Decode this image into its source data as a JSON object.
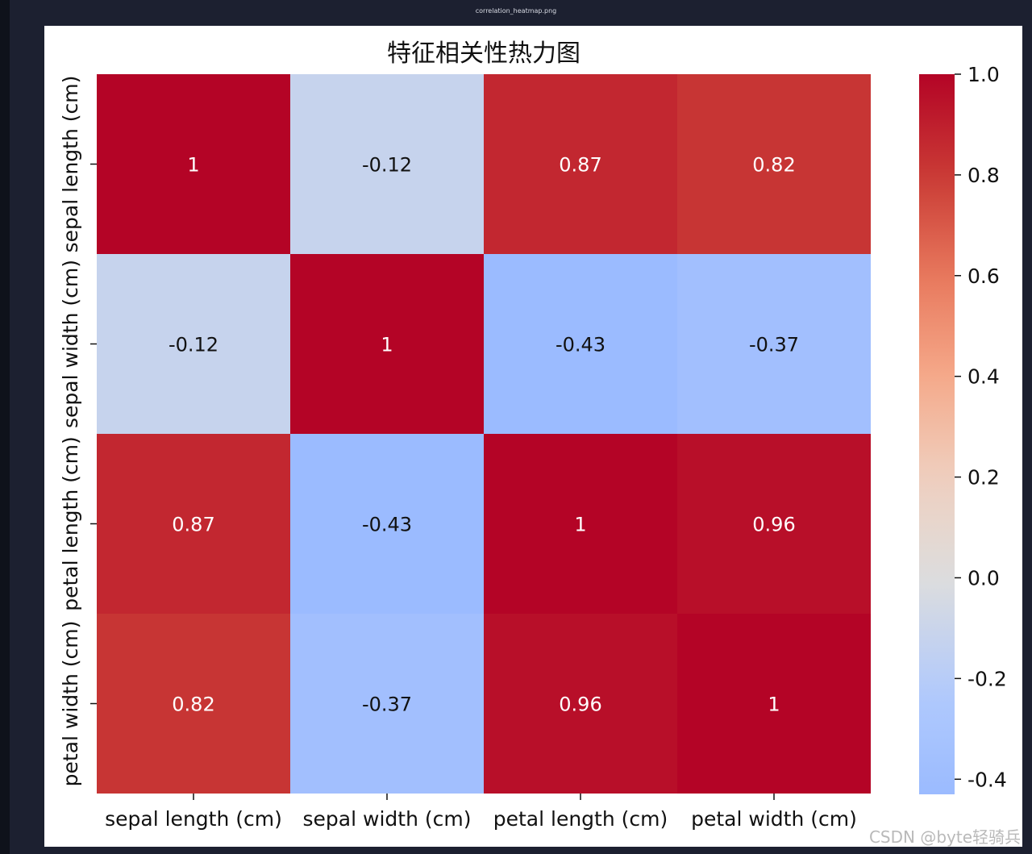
{
  "window": {
    "file_title": "correlation_heatmap.png"
  },
  "watermark": "CSDN @byte轻骑兵",
  "chart_data": {
    "type": "heatmap",
    "title": "特征相关性热力图",
    "x_labels": [
      "sepal length (cm)",
      "sepal width (cm)",
      "petal length (cm)",
      "petal width (cm)"
    ],
    "y_labels": [
      "sepal length (cm)",
      "sepal width (cm)",
      "petal length (cm)",
      "petal width (cm)"
    ],
    "matrix": [
      [
        1.0,
        -0.12,
        0.87,
        0.82
      ],
      [
        -0.12,
        1.0,
        -0.43,
        -0.37
      ],
      [
        0.87,
        -0.43,
        1.0,
        0.96
      ],
      [
        0.82,
        -0.37,
        0.96,
        1.0
      ]
    ],
    "annotations": [
      [
        "1",
        "-0.12",
        "0.87",
        "0.82"
      ],
      [
        "-0.12",
        "1",
        "-0.43",
        "-0.37"
      ],
      [
        "0.87",
        "-0.43",
        "1",
        "0.96"
      ],
      [
        "0.82",
        "-0.37",
        "0.96",
        "1"
      ]
    ],
    "colormap": "coolwarm",
    "vmin": -0.43,
    "vmax": 1.0,
    "center": 0.0,
    "colorbar_ticks": [
      1.0,
      0.8,
      0.6,
      0.4,
      0.2,
      0.0,
      -0.2,
      -0.4
    ],
    "colorbar_tick_labels": [
      "1.0",
      "0.8",
      "0.6",
      "0.4",
      "0.2",
      "0.0",
      "-0.2",
      "-0.4"
    ],
    "colorbar_location": "right"
  }
}
